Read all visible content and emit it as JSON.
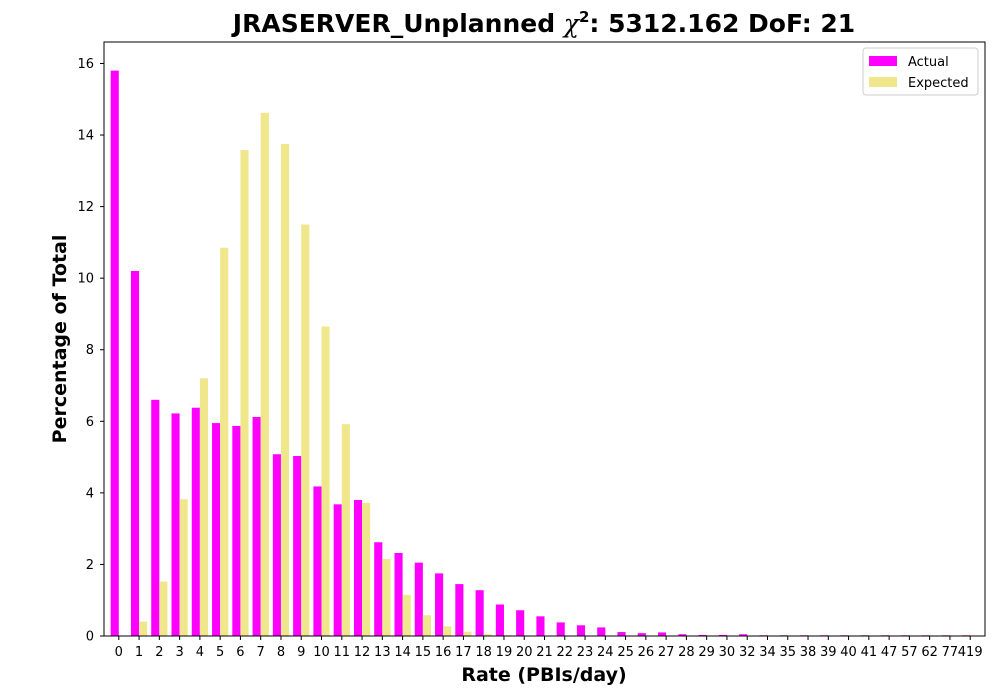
{
  "chart_data": {
    "type": "bar",
    "title": {
      "prefix": "JRASERVER_Unplanned ",
      "symbol": "χ",
      "superscript": "2",
      "suffix": ": 5312.162 DoF: 21"
    },
    "xlabel": "Rate (PBIs/day)",
    "ylabel": "Percentage of Total",
    "ylim": [
      0,
      16.6
    ],
    "yticks": [
      0,
      2,
      4,
      6,
      8,
      10,
      12,
      14,
      16
    ],
    "grid": false,
    "legend_position": "top-right",
    "categories": [
      "0",
      "1",
      "2",
      "3",
      "4",
      "5",
      "6",
      "7",
      "8",
      "9",
      "10",
      "11",
      "12",
      "13",
      "14",
      "15",
      "16",
      "17",
      "18",
      "19",
      "20",
      "21",
      "22",
      "23",
      "24",
      "25",
      "26",
      "27",
      "28",
      "29",
      "30",
      "32",
      "34",
      "35",
      "38",
      "39",
      "40",
      "41",
      "47",
      "57",
      "62",
      "77",
      "419"
    ],
    "series": [
      {
        "name": "Actual",
        "color": "#ff00ff",
        "values": [
          15.8,
          10.2,
          6.6,
          6.22,
          6.38,
          5.95,
          5.87,
          6.12,
          5.08,
          5.03,
          4.18,
          3.68,
          3.8,
          2.62,
          2.32,
          2.05,
          1.75,
          1.45,
          1.28,
          0.88,
          0.72,
          0.55,
          0.38,
          0.3,
          0.24,
          0.11,
          0.08,
          0.1,
          0.05,
          0.03,
          0.03,
          0.05,
          0.02,
          0.02,
          0.02,
          0.02,
          0.02,
          0.02,
          0.02,
          0.02,
          0.02,
          0.02,
          0.02
        ]
      },
      {
        "name": "Expected",
        "color": "#f0e68c",
        "values": [
          0.0,
          0.4,
          1.52,
          3.82,
          7.2,
          10.85,
          13.58,
          14.62,
          13.75,
          11.5,
          8.65,
          5.92,
          3.72,
          2.15,
          1.15,
          0.58,
          0.27,
          0.12,
          0.05,
          0.02,
          0.01,
          0.0,
          0.0,
          0.0,
          0.0,
          0.0,
          0.0,
          0.0,
          0.0,
          0.0,
          0.0,
          0.0,
          0.0,
          0.0,
          0.0,
          0.0,
          0.0,
          0.0,
          0.0,
          0.0,
          0.0,
          0.0,
          0.0
        ]
      }
    ]
  }
}
